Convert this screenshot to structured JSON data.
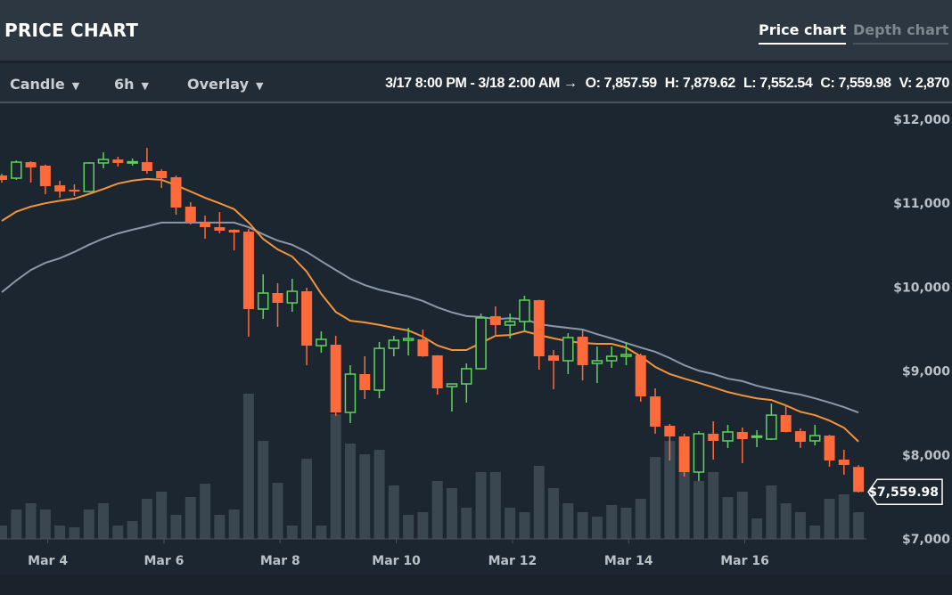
{
  "header": {
    "title": "PRICE CHART",
    "tabs": [
      {
        "label": "Price chart",
        "active": true
      },
      {
        "label": "Depth chart",
        "active": false
      }
    ]
  },
  "toolbar": {
    "chart_type": "Candle",
    "interval": "6h",
    "overlay": "Overlay",
    "range": "3/17 8:00 PM - 3/18 2:00 AM →",
    "open": "O: 7,857.59",
    "high": "H: 7,879.62",
    "low": "L: 7,552.54",
    "close": "C: 7,559.98",
    "volume": "V: 2,870"
  },
  "colors": {
    "up": "#5fd35a",
    "down": "#ff6a3a",
    "ema_short": "#f4943a",
    "ema_long": "#8a98a8",
    "volume": "#3a4650"
  },
  "chart_data": {
    "type": "candlestick",
    "interval": "6h",
    "ylim": [
      7000,
      12000
    ],
    "y_ticks": [
      "$12,000",
      "$11,000",
      "$10,000",
      "$9,000",
      "$8,000",
      "$7,000"
    ],
    "y_tick_values": [
      12000,
      11000,
      10000,
      9000,
      8000,
      7000
    ],
    "x_ticks": [
      {
        "label": "Mar 4",
        "index": 3.67
      },
      {
        "label": "Mar 6",
        "index": 11.67
      },
      {
        "label": "Mar 8",
        "index": 19.67
      },
      {
        "label": "Mar 10",
        "index": 27.67
      },
      {
        "label": "Mar 12",
        "index": 35.67
      },
      {
        "label": "Mar 14",
        "index": 43.67
      },
      {
        "label": "Mar 16",
        "index": 51.67
      }
    ],
    "last_price_label": "$7,559.98",
    "last_price": 7559.98,
    "candles": [
      [
        11331,
        11352,
        11246,
        11278
      ],
      [
        11299,
        11510,
        11280,
        11490
      ],
      [
        11490,
        11500,
        11246,
        11427
      ],
      [
        11448,
        11460,
        11108,
        11204
      ],
      [
        11214,
        11267,
        11066,
        11140
      ],
      [
        11161,
        11225,
        11087,
        11140
      ],
      [
        11140,
        11490,
        11130,
        11480
      ],
      [
        11480,
        11607,
        11416,
        11522
      ],
      [
        11522,
        11554,
        11437,
        11480
      ],
      [
        11485,
        11533,
        11448,
        11495
      ],
      [
        11490,
        11660,
        11352,
        11384
      ],
      [
        11384,
        11405,
        11183,
        11299
      ],
      [
        11310,
        11331,
        10864,
        10949
      ],
      [
        10960,
        11013,
        10747,
        10769
      ],
      [
        10769,
        10853,
        10577,
        10715
      ],
      [
        10715,
        10896,
        10641,
        10673
      ],
      [
        10684,
        10690,
        10439,
        10652
      ],
      [
        10662,
        10694,
        9410,
        9739
      ],
      [
        9739,
        10153,
        9622,
        9930
      ],
      [
        9930,
        10047,
        9527,
        9813
      ],
      [
        9813,
        10100,
        9707,
        9951
      ],
      [
        9951,
        9994,
        9070,
        9303
      ],
      [
        9303,
        9473,
        9219,
        9378
      ],
      [
        9314,
        9420,
        8465,
        8507
      ],
      [
        8507,
        9070,
        8380,
        8964
      ],
      [
        8964,
        9176,
        8666,
        8773
      ],
      [
        8773,
        9346,
        8677,
        9271
      ],
      [
        9271,
        9420,
        9176,
        9367
      ],
      [
        9367,
        9516,
        9187,
        9388
      ],
      [
        9378,
        9495,
        9170,
        9176
      ],
      [
        9187,
        9190,
        8720,
        8794
      ],
      [
        8815,
        8850,
        8518,
        8847
      ],
      [
        8847,
        9091,
        8624,
        9028
      ],
      [
        9028,
        9686,
        9020,
        9633
      ],
      [
        9654,
        9771,
        9410,
        9548
      ],
      [
        9548,
        9686,
        9388,
        9590
      ],
      [
        9590,
        9898,
        9473,
        9845
      ],
      [
        9845,
        9850,
        9017,
        9176
      ],
      [
        9187,
        9250,
        8783,
        9123
      ],
      [
        9123,
        9452,
        8964,
        9399
      ],
      [
        9410,
        9484,
        8889,
        9070
      ],
      [
        9091,
        9293,
        8858,
        9123
      ],
      [
        9123,
        9293,
        9038,
        9176
      ],
      [
        9176,
        9346,
        9070,
        9197
      ],
      [
        9187,
        9208,
        8635,
        8698
      ],
      [
        8698,
        8794,
        8253,
        8337
      ],
      [
        8348,
        8369,
        7934,
        8221
      ],
      [
        8221,
        8253,
        7743,
        7796
      ],
      [
        7796,
        8284,
        7690,
        8253
      ],
      [
        8253,
        8401,
        7945,
        8168
      ],
      [
        8168,
        8359,
        8083,
        8274
      ],
      [
        8274,
        8327,
        7902,
        8189
      ],
      [
        8215,
        8295,
        8093,
        8226
      ],
      [
        8189,
        8613,
        8178,
        8475
      ],
      [
        8475,
        8592,
        8270,
        8274
      ],
      [
        8284,
        8316,
        8083,
        8157
      ],
      [
        8168,
        8359,
        8115,
        8231
      ],
      [
        8231,
        8240,
        7860,
        7934
      ],
      [
        7945,
        8062,
        7764,
        7881
      ],
      [
        7857.59,
        7879.62,
        7552.54,
        7559.98
      ]
    ],
    "volume": [
      1435,
      3160,
      3830,
      3160,
      1435,
      1245,
      3160,
      3830,
      1435,
      1915,
      4305,
      5070,
      2585,
      4500,
      5930,
      2585,
      3160,
      15600,
      10525,
      6030,
      1435,
      8610,
      1435,
      13400,
      10240,
      9090,
      9570,
      5740,
      2585,
      2870,
      6220,
      5455,
      3350,
      7180,
      7180,
      3350,
      2870,
      7850,
      5455,
      3830,
      2870,
      2390,
      3640,
      3350,
      4305,
      8800,
      10525,
      7180,
      6220,
      7180,
      4500,
      5070,
      2200,
      5740,
      3830,
      2870,
      1435,
      4305,
      4785,
      2870
    ],
    "ema_short": [
      10790,
      10900,
      10960,
      11000,
      11030,
      11055,
      11110,
      11170,
      11235,
      11270,
      11290,
      11280,
      11215,
      11140,
      11065,
      11000,
      10930,
      10770,
      10575,
      10450,
      10365,
      10185,
      9920,
      9705,
      9600,
      9580,
      9550,
      9515,
      9485,
      9410,
      9305,
      9250,
      9250,
      9335,
      9420,
      9430,
      9475,
      9430,
      9390,
      9355,
      9335,
      9325,
      9325,
      9280,
      9175,
      9050,
      8965,
      8910,
      8860,
      8805,
      8750,
      8710,
      8675,
      8655,
      8590,
      8515,
      8475,
      8410,
      8325,
      8160
    ],
    "ema_long": [
      9940,
      10080,
      10205,
      10290,
      10345,
      10420,
      10505,
      10580,
      10640,
      10685,
      10725,
      10770,
      10770,
      10770,
      10770,
      10770,
      10770,
      10715,
      10630,
      10555,
      10505,
      10420,
      10310,
      10205,
      10100,
      10025,
      9970,
      9930,
      9890,
      9835,
      9760,
      9700,
      9655,
      9645,
      9620,
      9630,
      9620,
      9560,
      9535,
      9515,
      9495,
      9440,
      9390,
      9335,
      9280,
      9230,
      9155,
      9070,
      9005,
      8965,
      8910,
      8880,
      8825,
      8785,
      8750,
      8720,
      8675,
      8625,
      8570,
      8505
    ]
  }
}
